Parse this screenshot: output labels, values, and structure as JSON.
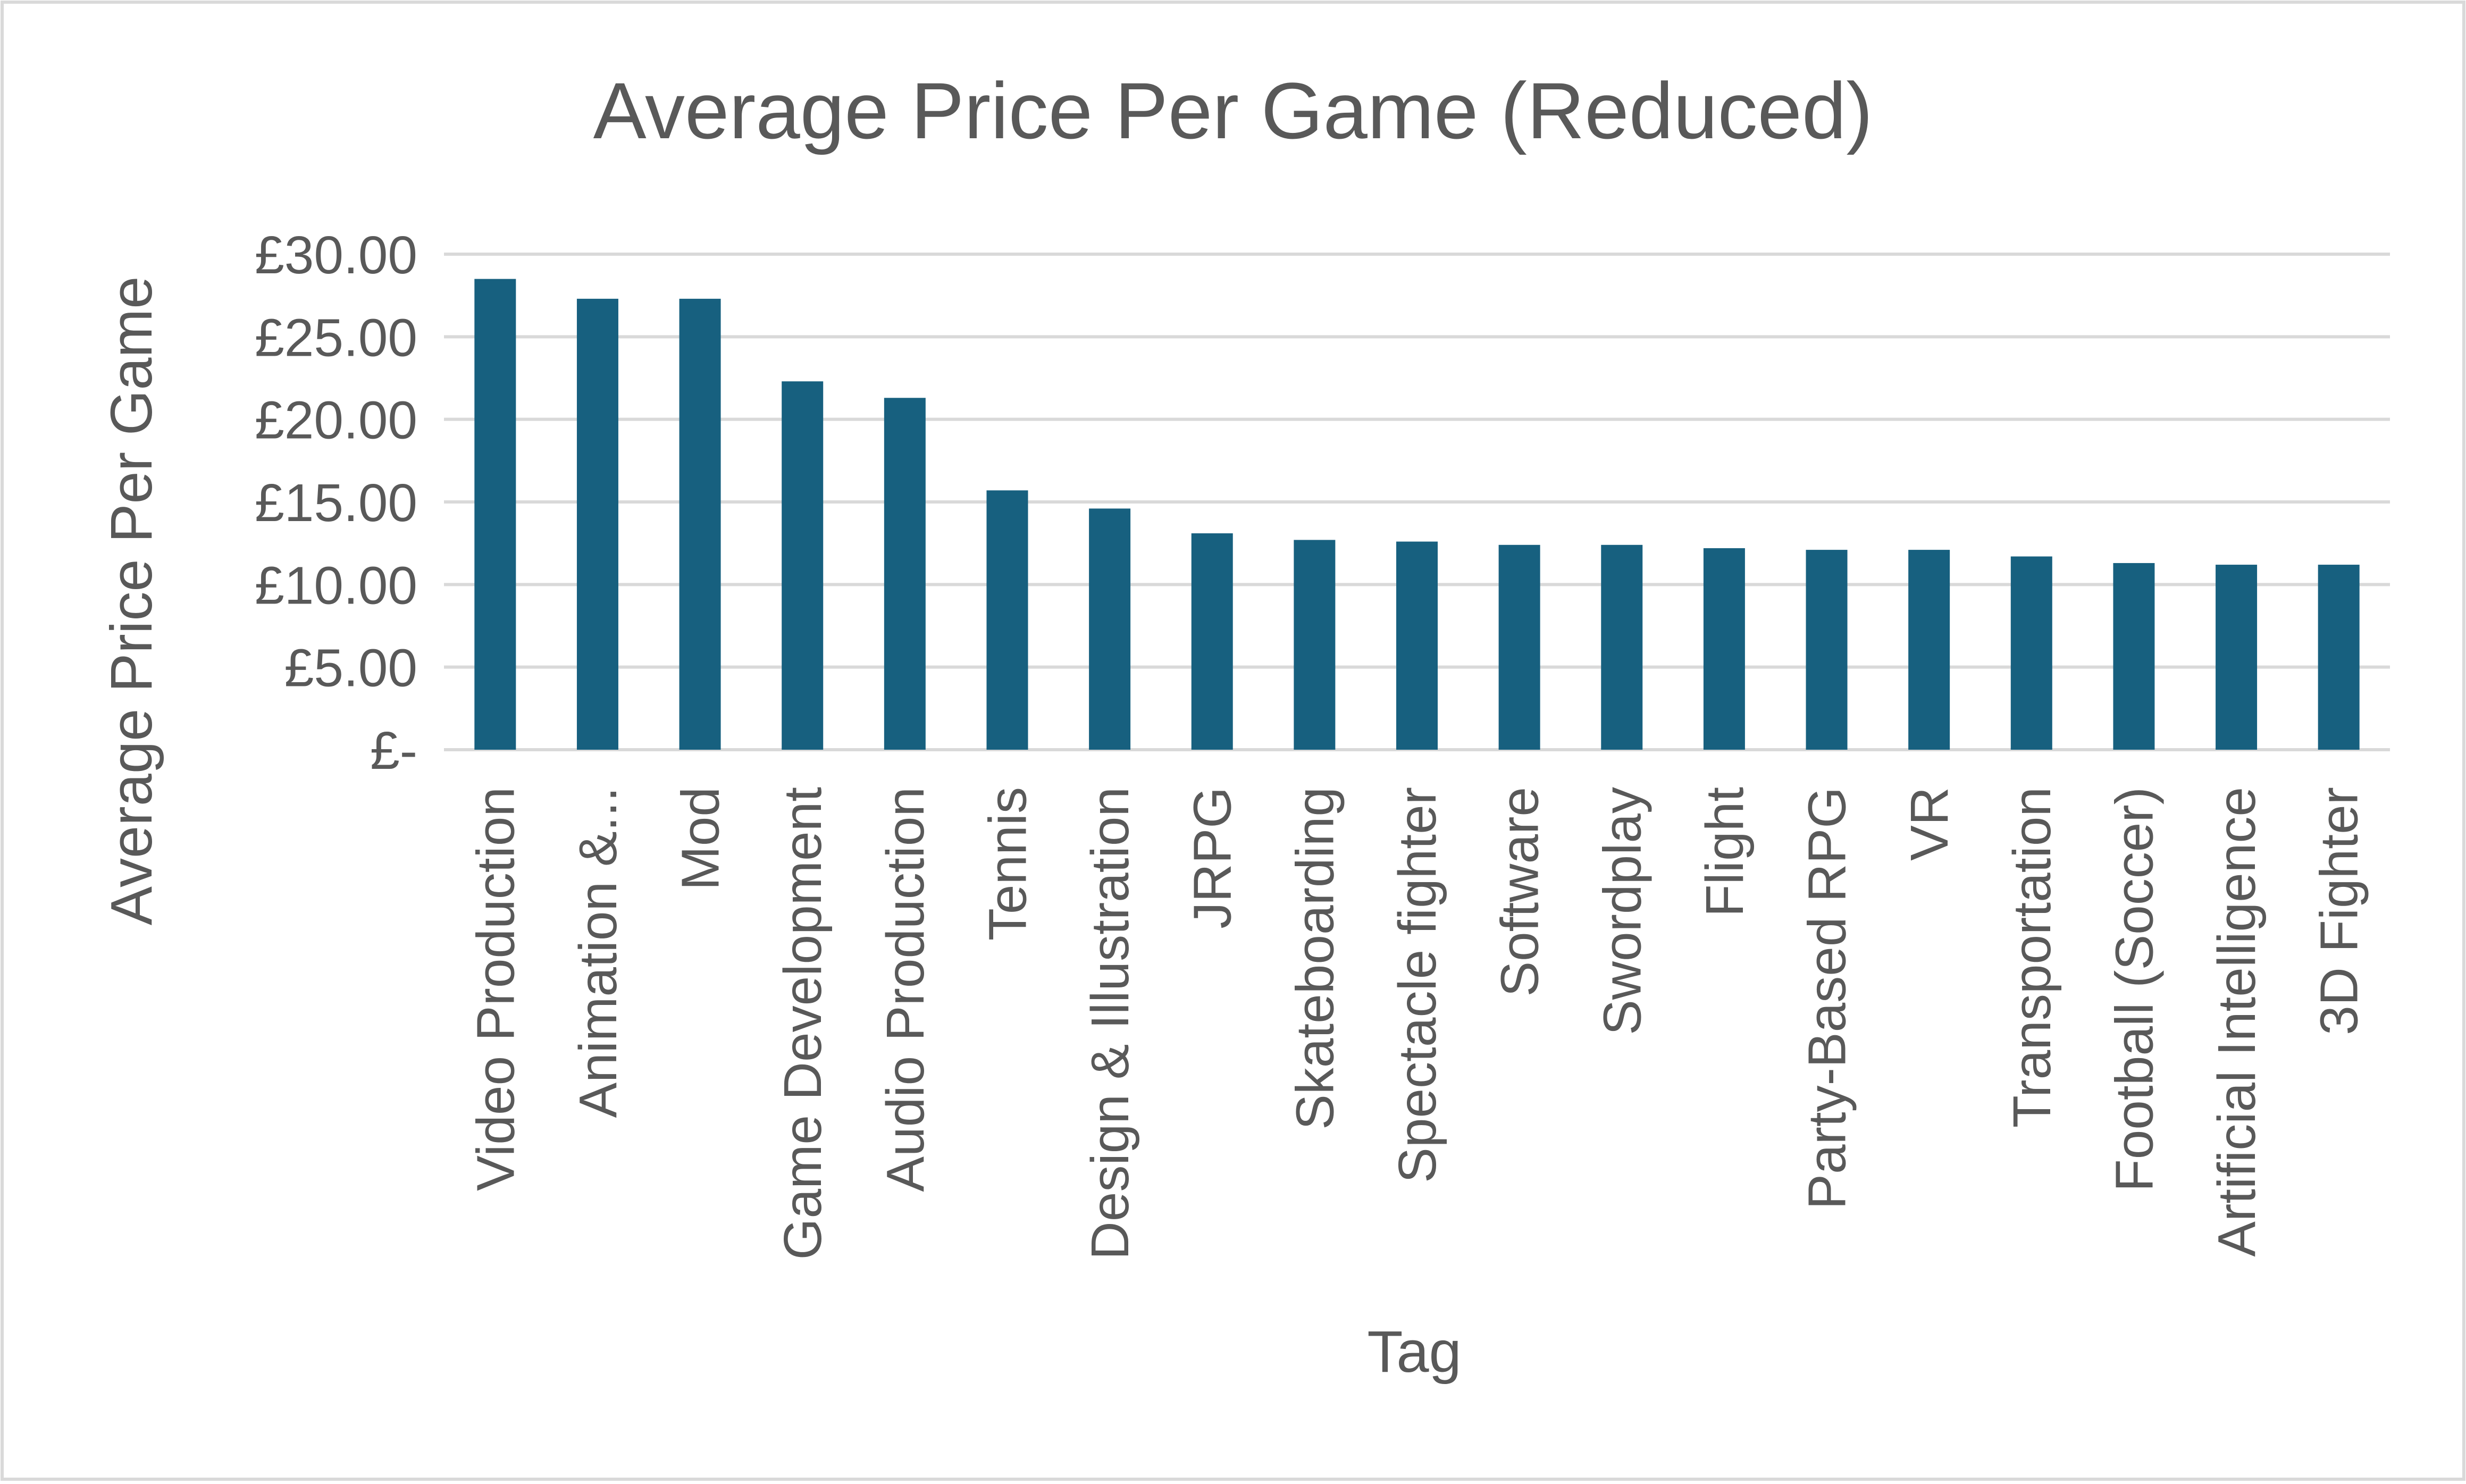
{
  "chart_data": {
    "type": "bar",
    "title": "Average Price Per Game (Reduced)",
    "xlabel": "Tag",
    "ylabel": "Average Price Per Game",
    "categories": [
      "Video Production",
      "Animation &...",
      "Mod",
      "Game Development",
      "Audio Production",
      "Tennis",
      "Design & Illustration",
      "JRPG",
      "Skateboarding",
      "Spectacle fighter",
      "Software",
      "Swordplay",
      "Flight",
      "Party-Based RPG",
      "VR",
      "Transportation",
      "Football (Soccer)",
      "Artificial Intelligence",
      "3D Fighter"
    ],
    "series": [
      {
        "values": [
          28.5,
          27.3,
          27.3,
          22.3,
          21.3,
          15.7,
          14.6,
          13.1,
          12.7,
          12.6,
          12.4,
          12.4,
          12.2,
          12.1,
          12.1,
          11.7,
          11.3,
          11.2,
          11.2
        ]
      }
    ],
    "ylim": [
      0,
      30
    ],
    "yticks": [
      0,
      5,
      10,
      15,
      20,
      25,
      30
    ],
    "ytick_labels": [
      "£-",
      "£5.00",
      "£10.00",
      "£15.00",
      "£20.00",
      "£25.00",
      "£30.00"
    ],
    "grid": true,
    "legend": "none",
    "bar_color": "#17607F",
    "grid_color": "#D9D9D9",
    "border_color": "#D9D9D9"
  }
}
